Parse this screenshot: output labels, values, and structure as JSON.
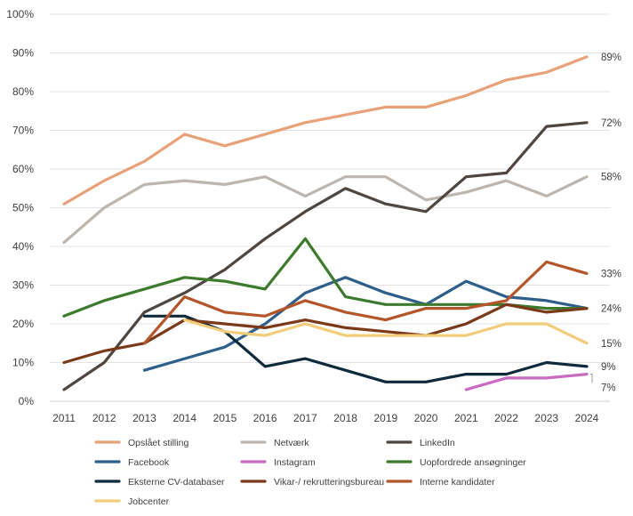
{
  "chart_data": {
    "type": "line",
    "title": "",
    "xlabel": "",
    "ylabel": "",
    "x": [
      2011,
      2012,
      2013,
      2014,
      2015,
      2016,
      2017,
      2018,
      2019,
      2020,
      2021,
      2022,
      2023,
      2024
    ],
    "ylim": [
      0,
      100
    ],
    "y_ticks": [
      "0%",
      "10%",
      "20%",
      "30%",
      "40%",
      "50%",
      "60%",
      "70%",
      "80%",
      "90%",
      "100%"
    ],
    "grid": true,
    "legend_position": "bottom",
    "series": [
      {
        "name": "Opslået stilling",
        "color": "#E8A27A",
        "end_label": "89%",
        "values": [
          51,
          57,
          62,
          69,
          66,
          69,
          72,
          74,
          76,
          76,
          79,
          83,
          85,
          89
        ]
      },
      {
        "name": "Netværk",
        "color": "#BDB6AE",
        "end_label": "58%",
        "values": [
          41,
          50,
          56,
          57,
          56,
          58,
          53,
          58,
          58,
          52,
          54,
          57,
          53,
          58
        ]
      },
      {
        "name": "LinkedIn",
        "color": "#4F4641",
        "end_label": "72%",
        "values": [
          3,
          10,
          23,
          28,
          34,
          42,
          49,
          55,
          51,
          49,
          58,
          59,
          71,
          72
        ]
      },
      {
        "name": "Facebook",
        "color": "#2E5E8A",
        "end_label": "24%",
        "values": [
          null,
          null,
          8,
          11,
          14,
          20,
          28,
          32,
          28,
          25,
          31,
          27,
          26,
          24
        ]
      },
      {
        "name": "Instagram",
        "color": "#C86BC1",
        "end_label": "7%",
        "values": [
          null,
          null,
          null,
          null,
          null,
          null,
          null,
          null,
          null,
          null,
          3,
          6,
          6,
          7
        ]
      },
      {
        "name": "Uopfordrede ansøgninger",
        "color": "#3E7A2E",
        "end_label": "",
        "values": [
          22,
          26,
          29,
          32,
          31,
          29,
          42,
          27,
          25,
          25,
          25,
          25,
          24,
          24
        ]
      },
      {
        "name": "Eksterne CV-databaser",
        "color": "#0F2A3A",
        "end_label": "9%",
        "values": [
          null,
          null,
          22,
          22,
          18,
          9,
          11,
          8,
          5,
          5,
          7,
          7,
          10,
          9
        ]
      },
      {
        "name": "Vikar-/ rekrutteringsbureau",
        "color": "#7A3A1A",
        "end_label": "",
        "values": [
          10,
          13,
          15,
          21,
          20,
          19,
          21,
          19,
          18,
          17,
          20,
          25,
          23,
          24
        ]
      },
      {
        "name": "Interne kandidater",
        "color": "#B5552A",
        "end_label": "33%",
        "values": [
          null,
          null,
          15,
          27,
          23,
          22,
          26,
          23,
          21,
          24,
          24,
          26,
          36,
          33
        ]
      },
      {
        "name": "Jobcenter",
        "color": "#F1CC79",
        "end_label": "15%",
        "values": [
          null,
          null,
          null,
          21,
          18,
          17,
          20,
          17,
          17,
          17,
          17,
          20,
          20,
          15
        ]
      }
    ]
  }
}
